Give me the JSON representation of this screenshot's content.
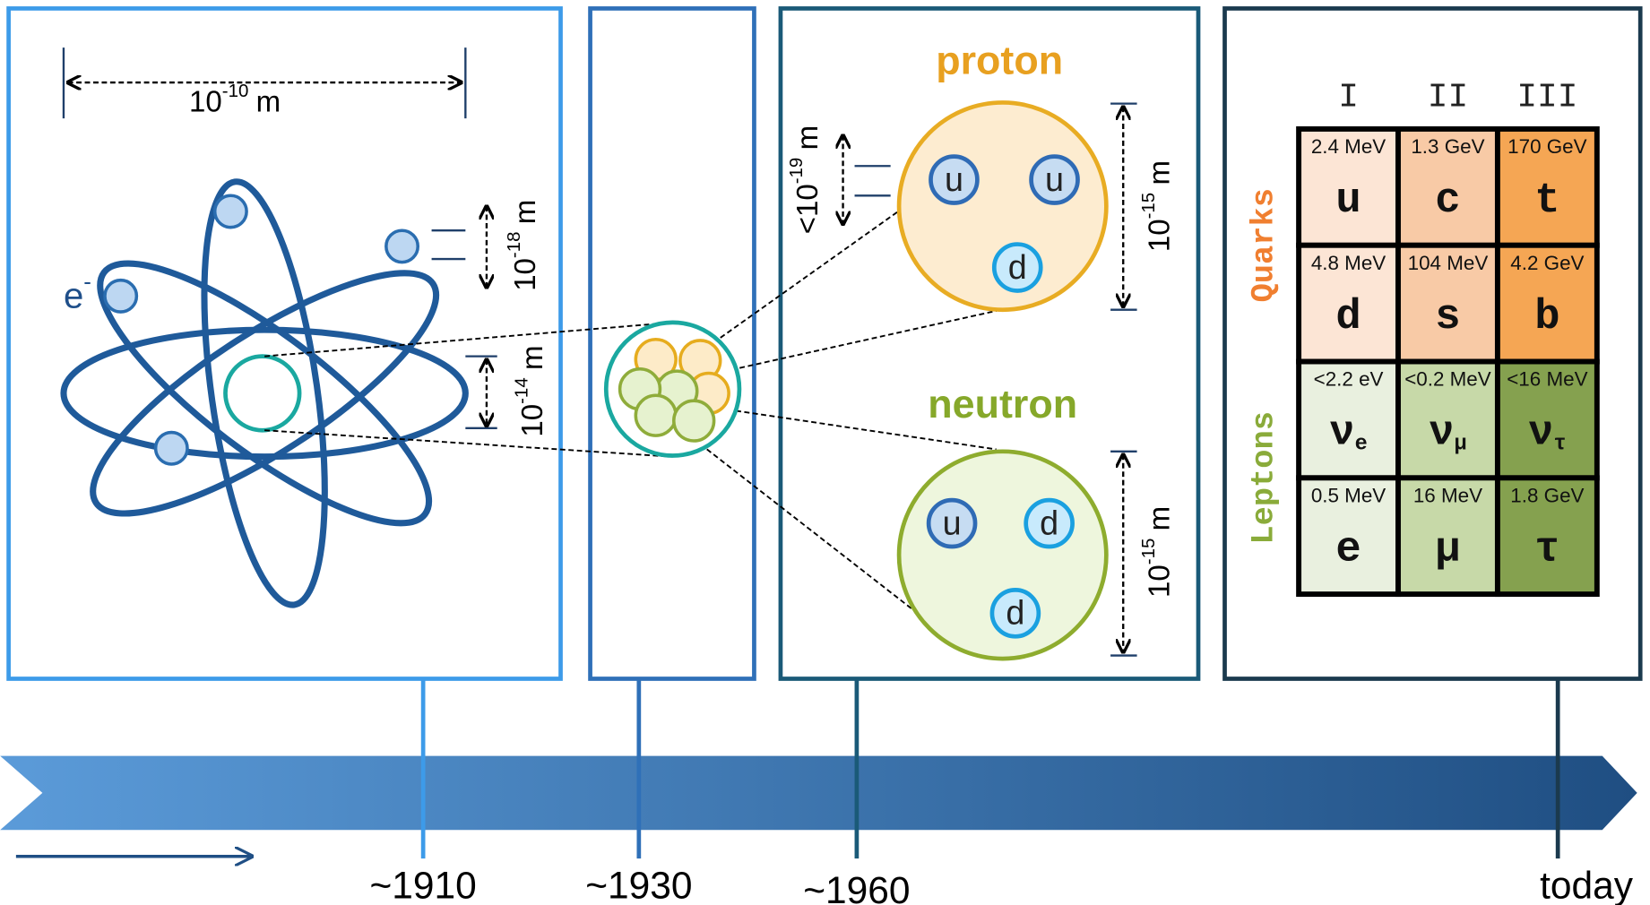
{
  "atom": {
    "electron": {
      "base": "e",
      "sup": "-"
    },
    "size": {
      "base": "10",
      "exp": "-10",
      "unit": "m"
    },
    "electron_size": {
      "base": "10",
      "exp": "-18",
      "unit": "m"
    },
    "nucleus_size": {
      "base": "10",
      "exp": "-14",
      "unit": "m"
    }
  },
  "proton": {
    "label": "proton",
    "quarks": [
      "u",
      "u",
      "d"
    ],
    "size": {
      "base": "10",
      "exp": "-15",
      "unit": "m"
    },
    "quark_size": {
      "base": "<10",
      "exp": "-19",
      "unit": "m"
    }
  },
  "neutron": {
    "label": "neutron",
    "quarks": [
      "u",
      "d",
      "d"
    ],
    "size": {
      "base": "10",
      "exp": "-15",
      "unit": "m"
    }
  },
  "table": {
    "generations": [
      "I",
      "II",
      "III"
    ],
    "groups": [
      "Quarks",
      "Leptons"
    ],
    "rows": [
      [
        {
          "mass": "2.4 MeV",
          "symbol": "u"
        },
        {
          "mass": "1.3 GeV",
          "symbol": "c"
        },
        {
          "mass": "170 GeV",
          "symbol": "t"
        }
      ],
      [
        {
          "mass": "4.8 MeV",
          "symbol": "d"
        },
        {
          "mass": "104 MeV",
          "symbol": "s"
        },
        {
          "mass": "4.2 GeV",
          "symbol": "b"
        }
      ],
      [
        {
          "mass": "<2.2 eV",
          "symbol": "ν",
          "sub": "e"
        },
        {
          "mass": "<0.2 MeV",
          "symbol": "ν",
          "sub": "μ"
        },
        {
          "mass": "<16 MeV",
          "symbol": "ν",
          "sub": "τ"
        }
      ],
      [
        {
          "mass": "0.5 MeV",
          "symbol": "e"
        },
        {
          "mass": "16 MeV",
          "symbol": "μ"
        },
        {
          "mass": "1.8 GeV",
          "symbol": "τ"
        }
      ]
    ]
  },
  "timeline": [
    "~1910",
    "~1930",
    "~1960",
    "today"
  ]
}
